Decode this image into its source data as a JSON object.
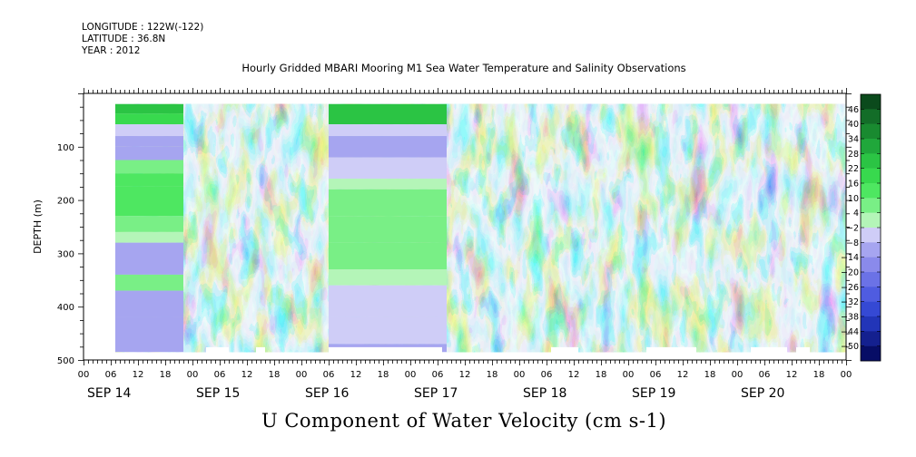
{
  "header": {
    "longitude": "LONGITUDE : 122W(-122)",
    "latitude": "LATITUDE : 36.8N",
    "year": "YEAR : 2012"
  },
  "title": "Hourly Gridded MBARI Mooring M1 Sea Water Temperature and Salinity Observations",
  "subtitle": "U Component of Water Velocity (cm s-1)",
  "chart_data": {
    "type": "heatmap",
    "title": "Hourly Gridded MBARI Mooring M1 Sea Water Temperature and Salinity Observations",
    "variable": "U Component of Water Velocity (cm s-1)",
    "ylabel": "DEPTH (m)",
    "xlabel": "",
    "y_reversed": true,
    "ylim": [
      500,
      0
    ],
    "xlim_hours": [
      0,
      168
    ],
    "y_ticks": [
      100,
      200,
      300,
      400,
      500
    ],
    "x_hour_ticks": [
      "00",
      "06",
      "12",
      "18",
      "00",
      "06",
      "12",
      "18",
      "00",
      "06",
      "12",
      "18",
      "00",
      "06",
      "12",
      "18",
      "00",
      "06",
      "12",
      "18",
      "00",
      "06",
      "12",
      "18",
      "00",
      "06",
      "12",
      "18",
      "00"
    ],
    "day_labels": [
      "SEP 14",
      "SEP 15",
      "SEP 16",
      "SEP 17",
      "SEP 18",
      "SEP 19",
      "SEP 20"
    ],
    "data_extent": {
      "depth_top": 20,
      "depth_bottom": 485,
      "start_hour": 7,
      "end_hour": 168
    },
    "colorbar": {
      "levels": [
        46,
        40,
        34,
        28,
        22,
        16,
        10,
        4,
        -2,
        -8,
        -14,
        -20,
        -26,
        -32,
        -38,
        -44,
        -50
      ],
      "colors": [
        "#0b4a1c",
        "#136d28",
        "#198a30",
        "#20a73b",
        "#2bc444",
        "#38d94e",
        "#4ee761",
        "#79ef86",
        "#b4f5b8",
        "#cfcdf7",
        "#a6a5f0",
        "#8a8aeb",
        "#6b72e6",
        "#4f5ce0",
        "#3549d4",
        "#2235b8",
        "#14208f",
        "#070d66"
      ]
    }
  }
}
